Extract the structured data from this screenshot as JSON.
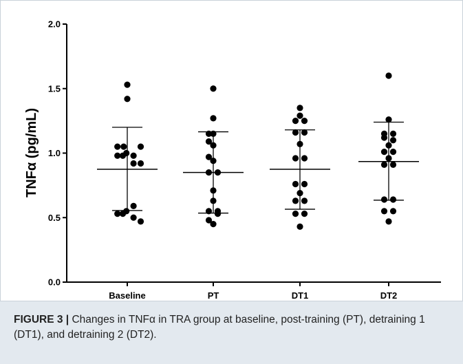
{
  "chart_data": {
    "type": "scatter",
    "ylabel": "TNFα (pg/mL)",
    "xlabel": "",
    "ylim": [
      0.0,
      2.0
    ],
    "yticks": [
      "0.0",
      "0.5",
      "1.0",
      "1.5",
      "2.0"
    ],
    "yticks_values": [
      0.0,
      0.5,
      1.0,
      1.5,
      2.0
    ],
    "categories": [
      "Baseline",
      "PT",
      "DT1",
      "DT2"
    ],
    "grid": false,
    "groups": [
      {
        "category": "Baseline",
        "mean": 0.875,
        "sd_upper": 1.2,
        "sd_lower": 0.555,
        "points": [
          [
            0.0,
            1.53
          ],
          [
            0.0,
            1.42
          ],
          [
            -0.55,
            1.05
          ],
          [
            -0.2,
            1.05
          ],
          [
            0.75,
            1.05
          ],
          [
            -0.55,
            0.98
          ],
          [
            -0.25,
            0.98
          ],
          [
            -0.05,
            1.0
          ],
          [
            0.35,
            0.98
          ],
          [
            0.35,
            0.92
          ],
          [
            0.75,
            0.92
          ],
          [
            -0.55,
            0.53
          ],
          [
            -0.25,
            0.53
          ],
          [
            -0.05,
            0.55
          ],
          [
            0.35,
            0.59
          ],
          [
            0.75,
            0.47
          ],
          [
            0.35,
            0.5
          ]
        ]
      },
      {
        "category": "PT",
        "mean": 0.85,
        "sd_upper": 1.165,
        "sd_lower": 0.535,
        "points": [
          [
            0.0,
            1.5
          ],
          [
            0.0,
            1.27
          ],
          [
            -0.25,
            1.15
          ],
          [
            0.0,
            1.15
          ],
          [
            -0.25,
            1.09
          ],
          [
            0.0,
            1.06
          ],
          [
            -0.25,
            0.97
          ],
          [
            0.0,
            0.94
          ],
          [
            -0.25,
            0.85
          ],
          [
            0.25,
            0.85
          ],
          [
            0.0,
            0.71
          ],
          [
            0.0,
            0.63
          ],
          [
            -0.25,
            0.55
          ],
          [
            0.25,
            0.55
          ],
          [
            -0.25,
            0.48
          ],
          [
            0.0,
            0.45
          ],
          [
            0.25,
            0.53
          ]
        ]
      },
      {
        "category": "DT1",
        "mean": 0.875,
        "sd_upper": 1.18,
        "sd_lower": 0.565,
        "points": [
          [
            0.0,
            1.35
          ],
          [
            0.0,
            1.29
          ],
          [
            -0.25,
            1.25
          ],
          [
            0.25,
            1.25
          ],
          [
            -0.25,
            1.16
          ],
          [
            0.25,
            1.16
          ],
          [
            0.0,
            1.07
          ],
          [
            -0.25,
            0.96
          ],
          [
            0.25,
            0.96
          ],
          [
            -0.25,
            0.76
          ],
          [
            0.25,
            0.76
          ],
          [
            0.0,
            0.69
          ],
          [
            -0.25,
            0.63
          ],
          [
            0.25,
            0.63
          ],
          [
            -0.25,
            0.53
          ],
          [
            0.25,
            0.53
          ],
          [
            0.0,
            0.43
          ]
        ]
      },
      {
        "category": "DT2",
        "mean": 0.935,
        "sd_upper": 1.24,
        "sd_lower": 0.635,
        "points": [
          [
            0.0,
            1.6
          ],
          [
            0.0,
            1.26
          ],
          [
            -0.25,
            1.15
          ],
          [
            0.25,
            1.15
          ],
          [
            -0.25,
            1.12
          ],
          [
            0.0,
            1.06
          ],
          [
            0.25,
            1.1
          ],
          [
            -0.25,
            1.01
          ],
          [
            0.25,
            1.01
          ],
          [
            0.0,
            0.96
          ],
          [
            -0.25,
            0.91
          ],
          [
            0.25,
            0.91
          ],
          [
            -0.25,
            0.64
          ],
          [
            0.25,
            0.64
          ],
          [
            -0.25,
            0.55
          ],
          [
            0.25,
            0.55
          ],
          [
            0.0,
            0.47
          ]
        ]
      }
    ],
    "colors": {
      "points": "#000000",
      "axis": "#000000"
    }
  },
  "caption": {
    "label": "FIGURE 3 |",
    "text": " Changes in TNFα in TRA group at baseline, post-training (PT), detraining 1 (DT1), and detraining 2 (DT2)."
  }
}
